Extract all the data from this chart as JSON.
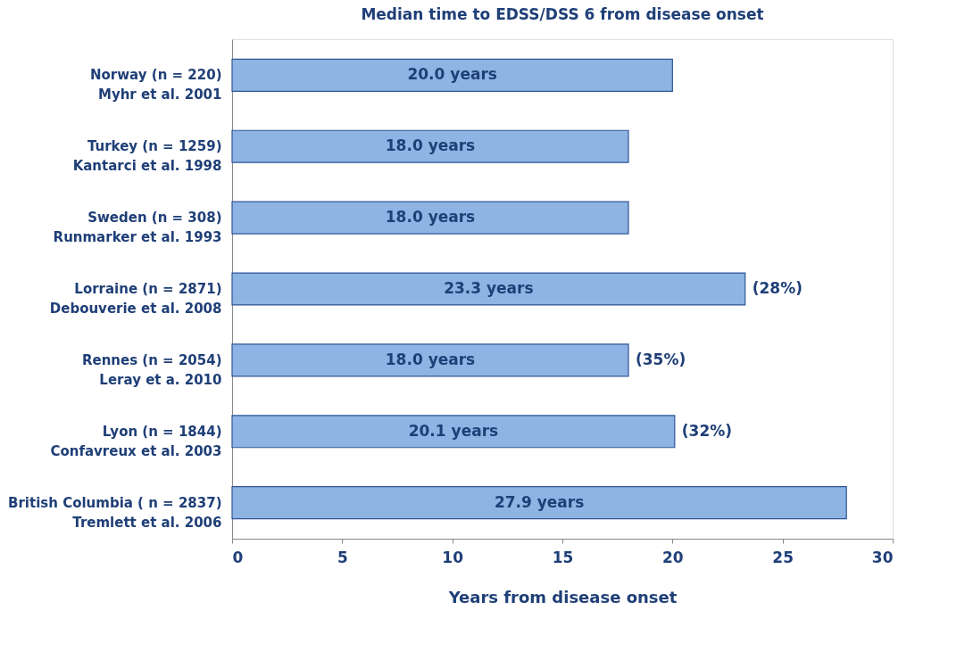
{
  "chart_data": {
    "type": "bar",
    "orientation": "horizontal",
    "title": "Median time to EDSS/DSS 6 from disease onset",
    "xlabel": "Years from disease onset",
    "categories": [
      "Norway (n = 220)\nMyhr et al. 2001",
      "Turkey (n = 1259)\nKantarci et al. 1998",
      "Sweden (n = 308)\nRunmarker et al. 1993",
      "Lorraine (n = 2871)\nDebouverie et al. 2008",
      "Rennes (n = 2054)\nLeray et a. 2010",
      "Lyon (n = 1844)\nConfavreux et al. 2003",
      "British Columbia ( n = 2837)\nTremlett et al. 2006"
    ],
    "values": [
      20.0,
      18.0,
      18.0,
      23.3,
      18.0,
      20.1,
      27.9
    ],
    "value_labels": [
      "20.0 years",
      "18.0 years",
      "18.0 years",
      "23.3 years",
      "18.0 years",
      "20.1 years",
      "27.9 years"
    ],
    "color": "#8db4e2",
    "xlim": [
      0,
      30
    ],
    "xticks": [
      0,
      5,
      10,
      15,
      20,
      25,
      30
    ],
    "grid": false,
    "annotations": [
      {
        "text": "(28%)",
        "x": 23.3,
        "y": "Lorraine (n = 2871)\nDebouverie et al. 2008"
      },
      {
        "text": "(35%)",
        "x": 18.0,
        "y": "Rennes (n = 2054)\nLeray et a. 2010"
      },
      {
        "text": "(32%)",
        "x": 20.1,
        "y": "Lyon (n = 1844)\nConfavreux et al. 2003"
      }
    ]
  }
}
